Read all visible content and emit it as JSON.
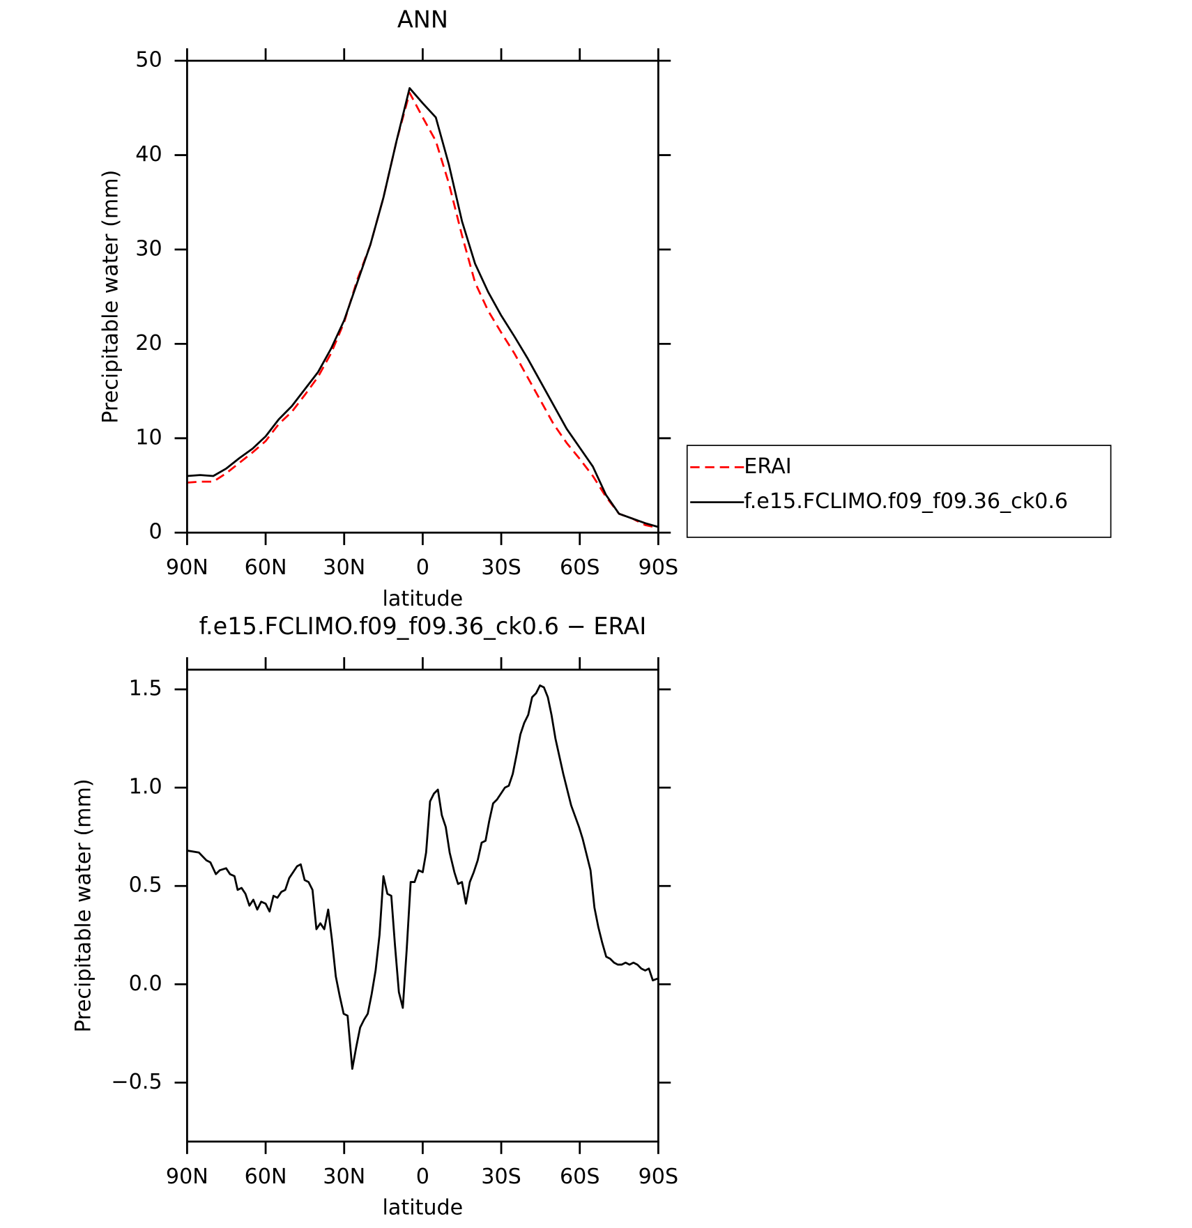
{
  "chart_data": [
    {
      "type": "line",
      "title": "ANN",
      "x_label": "latitude",
      "y_label": "Precipitable water (mm)",
      "x": [
        90,
        85,
        80,
        75,
        70,
        65,
        60,
        55,
        50,
        45,
        40,
        35,
        30,
        25,
        20,
        15,
        10,
        5,
        0,
        -5,
        -10,
        -15,
        -20,
        -25,
        -30,
        -35,
        -40,
        -45,
        -50,
        -55,
        -60,
        -65,
        -70,
        -75,
        -80,
        -85,
        -90
      ],
      "series": [
        {
          "name": "ERAI",
          "color": "#ff0000",
          "dash": "dashed",
          "values": [
            5.3,
            5.4,
            5.4,
            6.3,
            7.4,
            8.5,
            9.7,
            11.5,
            12.8,
            14.6,
            16.5,
            19.0,
            22.3,
            26.8,
            30.5,
            35.5,
            41.5,
            46.6,
            44.0,
            41.5,
            37.0,
            31.5,
            26.5,
            23.5,
            21.2,
            19.0,
            16.5,
            14.0,
            11.5,
            9.5,
            7.8,
            6.0,
            3.8,
            2.0,
            1.5,
            0.8,
            0.5
          ]
        },
        {
          "name": "f.e15.FCLIMO.f09_f09.36_ck0.6",
          "color": "#000000",
          "values": [
            6.0,
            6.1,
            6.0,
            6.8,
            7.9,
            8.9,
            10.2,
            12.0,
            13.4,
            15.2,
            17.0,
            19.5,
            22.5,
            26.5,
            30.5,
            35.5,
            41.5,
            47.1,
            45.5,
            44.0,
            39.0,
            33.0,
            28.5,
            25.5,
            23.0,
            20.8,
            18.5,
            16.0,
            13.5,
            11.0,
            9.0,
            7.0,
            4.0,
            2.0,
            1.5,
            1.0,
            0.6
          ]
        }
      ],
      "xlim": [
        90,
        -90
      ],
      "xticks": [
        {
          "value": 90,
          "label": "90N"
        },
        {
          "value": 60,
          "label": "60N"
        },
        {
          "value": 30,
          "label": "30N"
        },
        0,
        {
          "value": -30,
          "label": "30S"
        },
        {
          "value": -60,
          "label": "60S"
        },
        {
          "value": -90,
          "label": "90S"
        }
      ],
      "ylim": [
        0,
        50
      ],
      "yticks": [
        0,
        10,
        20,
        30,
        40,
        50
      ],
      "grid": false,
      "legend": "right"
    },
    {
      "type": "line",
      "title": "f.e15.FCLIMO.f09_f09.36_ck0.6 − ERAI",
      "x_label": "latitude",
      "y_label": "Precipitable water (mm)",
      "x": [
        90,
        85.5,
        82.6,
        81.1,
        79,
        77.5,
        75.1,
        73.6,
        71.9,
        70.7,
        69.2,
        67.7,
        66.2,
        64.7,
        63.2,
        61.7,
        60,
        58.5,
        57,
        55.5,
        54,
        52.5,
        51,
        49.5,
        48,
        46.6,
        45.1,
        43.6,
        42.1,
        40.6,
        39.1,
        37.6,
        36.1,
        34.7,
        33.2,
        31.7,
        30.2,
        28.7,
        26.9,
        25.4,
        23.9,
        22.4,
        21,
        19.5,
        18,
        16.5,
        15,
        13.5,
        12,
        10.6,
        9.1,
        7.6,
        6.1,
        4.6,
        3.1,
        1.6,
        0,
        -1.3,
        -2.8,
        -4.3,
        -5.8,
        -7.3,
        -8.8,
        -10.3,
        -12.1,
        -13.5,
        -15,
        -16.5,
        -18,
        -19.5,
        -21,
        -22.5,
        -24,
        -25.4,
        -26.9,
        -28.4,
        -29.9,
        -31.4,
        -32.9,
        -34.4,
        -35.9,
        -37.3,
        -38.8,
        -40.3,
        -41.8,
        -43.3,
        -44.8,
        -46.3,
        -47.8,
        -49.2,
        -50.7,
        -53.7,
        -56.7,
        -59.7,
        -61.1,
        -62.6,
        -64.1,
        -65.6,
        -67.1,
        -68.6,
        -70.1,
        -71.6,
        -73.1,
        -74.5,
        -76,
        -77.5,
        -79,
        -80.5,
        -82,
        -83.5,
        -85,
        -86.4,
        -87.9,
        -90
      ],
      "series": [
        {
          "color": "#000000",
          "values": [
            0.68,
            0.67,
            0.63,
            0.62,
            0.56,
            0.58,
            0.59,
            0.56,
            0.55,
            0.48,
            0.49,
            0.46,
            0.4,
            0.43,
            0.38,
            0.42,
            0.41,
            0.37,
            0.45,
            0.44,
            0.47,
            0.48,
            0.54,
            0.57,
            0.6,
            0.61,
            0.53,
            0.52,
            0.48,
            0.28,
            0.31,
            0.28,
            0.38,
            0.23,
            0.04,
            -0.06,
            -0.15,
            -0.16,
            -0.43,
            -0.32,
            -0.22,
            -0.18,
            -0.15,
            -0.05,
            0.07,
            0.25,
            0.55,
            0.46,
            0.45,
            0.2,
            -0.04,
            -0.12,
            0.18,
            0.52,
            0.52,
            0.58,
            0.57,
            0.67,
            0.93,
            0.97,
            0.99,
            0.86,
            0.8,
            0.67,
            0.57,
            0.51,
            0.52,
            0.41,
            0.52,
            0.57,
            0.63,
            0.72,
            0.73,
            0.83,
            0.92,
            0.94,
            0.97,
            1.0,
            1.01,
            1.07,
            1.17,
            1.27,
            1.33,
            1.37,
            1.46,
            1.48,
            1.52,
            1.51,
            1.46,
            1.37,
            1.25,
            1.07,
            0.91,
            0.8,
            0.74,
            0.66,
            0.58,
            0.39,
            0.29,
            0.21,
            0.14,
            0.13,
            0.11,
            0.1,
            0.1,
            0.11,
            0.1,
            0.11,
            0.1,
            0.08,
            0.07,
            0.08,
            0.02,
            0.03
          ]
        }
      ],
      "xlim": [
        90,
        -90
      ],
      "xticks": [
        {
          "value": 90,
          "label": "90N"
        },
        {
          "value": 60,
          "label": "60N"
        },
        {
          "value": 30,
          "label": "30N"
        },
        0,
        {
          "value": -30,
          "label": "30S"
        },
        {
          "value": -60,
          "label": "60S"
        },
        {
          "value": -90,
          "label": "90S"
        }
      ],
      "ylim": [
        -0.8,
        1.6
      ],
      "yticks": [
        {
          "value": -0.5,
          "label": "−0.5"
        },
        {
          "value": 0,
          "label": "0.0"
        },
        0.5,
        {
          "value": 1,
          "label": "1.0"
        },
        1.5
      ],
      "grid": false
    }
  ]
}
